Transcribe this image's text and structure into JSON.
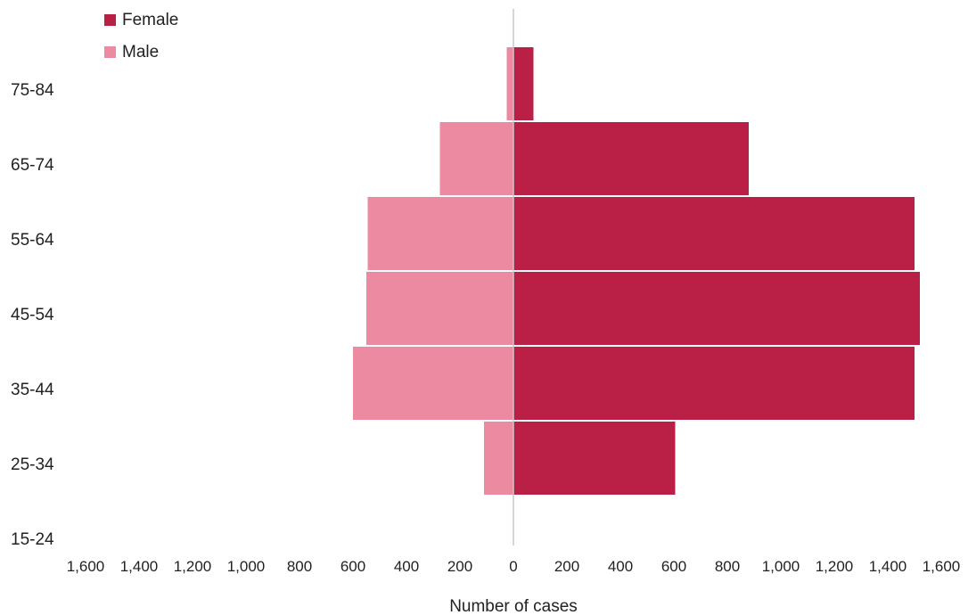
{
  "chart_data": {
    "type": "bar",
    "orientation": "horizontal",
    "layout": "population-pyramid",
    "categories": [
      "15-24",
      "25-34",
      "35-44",
      "45-54",
      "55-64",
      "65-74",
      "75-84"
    ],
    "series": [
      {
        "name": "Female",
        "color": "#BA2045",
        "values": [
          0,
          605,
          1500,
          1520,
          1500,
          880,
          75
        ]
      },
      {
        "name": "Male",
        "color": "#EB8AA0",
        "values": [
          0,
          110,
          600,
          550,
          545,
          275,
          25
        ]
      }
    ],
    "xlabel": "Number of cases",
    "ylabel": "",
    "xlim": [
      -1600,
      1600
    ],
    "x_ticks": [
      -1600,
      -1400,
      -1200,
      -1000,
      -800,
      -600,
      -400,
      -200,
      0,
      200,
      400,
      600,
      800,
      1000,
      1200,
      1400,
      1600
    ],
    "x_tick_labels": [
      "1,600",
      "1,400",
      "1,200",
      "1,000",
      "800",
      "600",
      "400",
      "200",
      "0",
      "200",
      "400",
      "600",
      "800",
      "1,000",
      "1,200",
      "1,400",
      "1,600"
    ],
    "legend_position": "top-left",
    "grid": false
  }
}
